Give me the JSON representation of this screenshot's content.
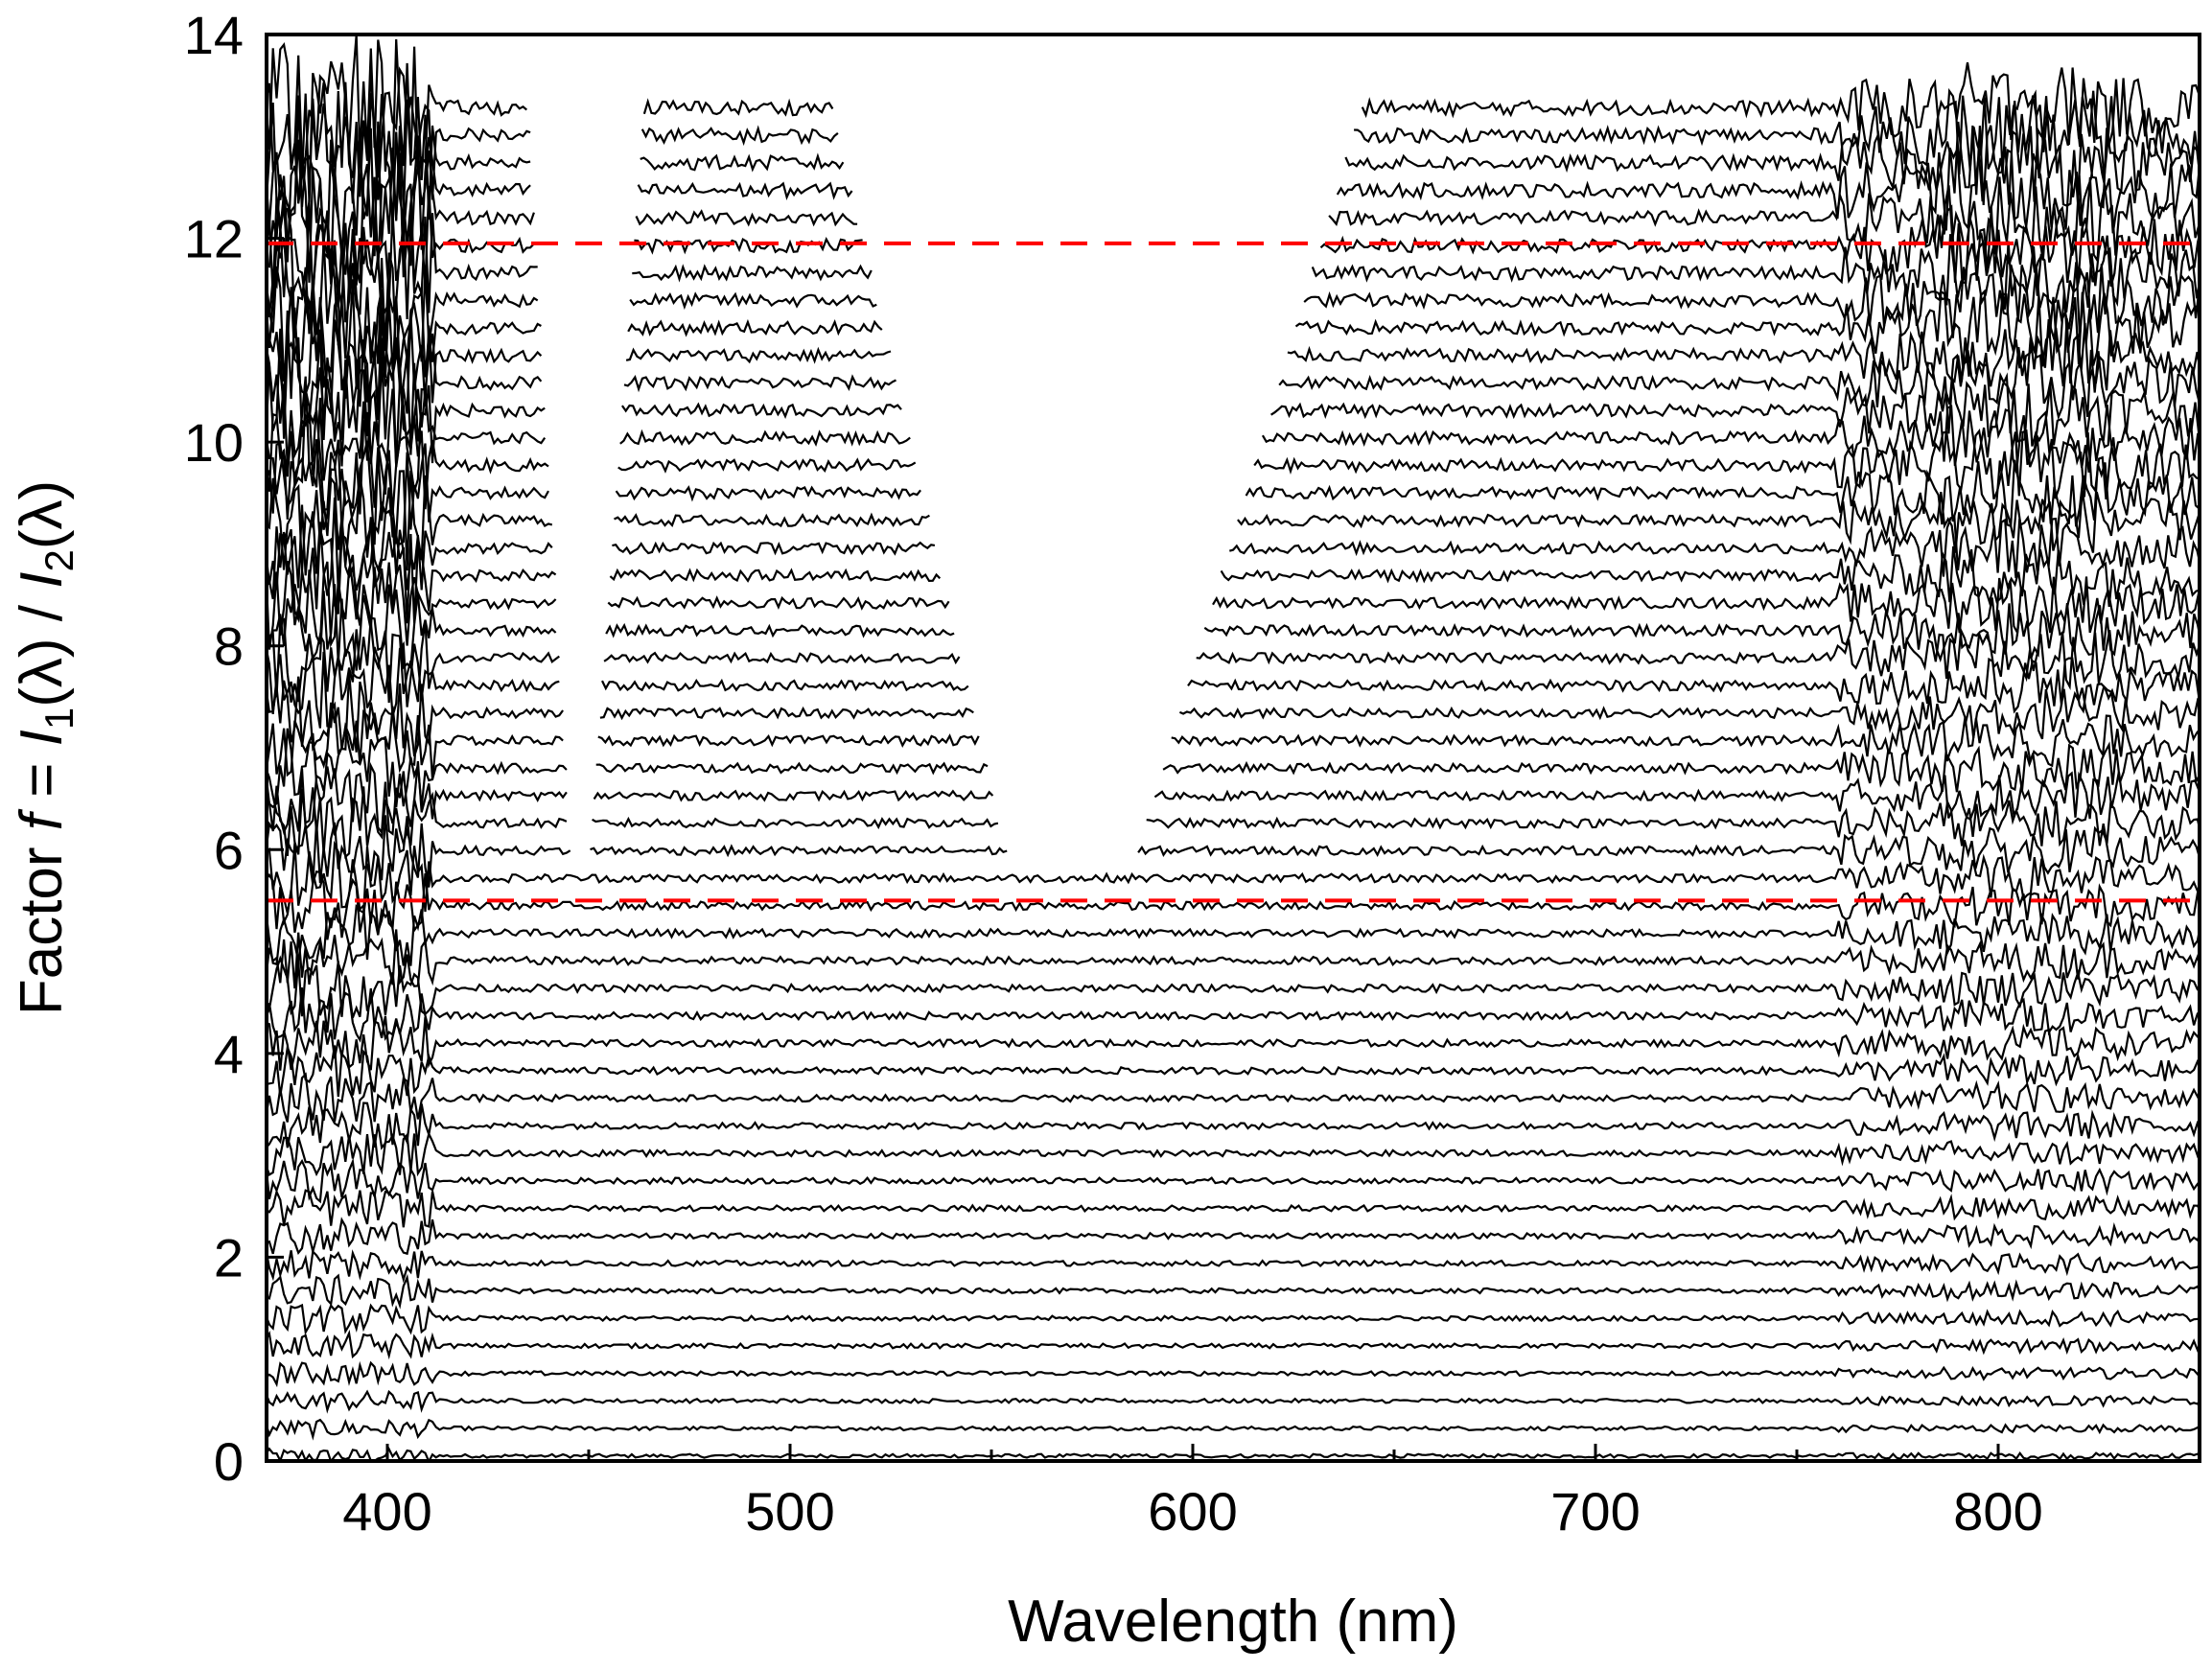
{
  "chart_data": {
    "type": "line",
    "title": "",
    "xlabel": "Wavelength (nm)",
    "ylabel": {
      "prefix": "Factor ",
      "f": "f",
      "eq": " = ",
      "I1": "I",
      "sub1": "1",
      "mid": "(λ) / ",
      "I2": "I",
      "sub2": "2",
      "end": "(λ)"
    },
    "xlim": [
      370,
      850
    ],
    "ylim": [
      0,
      14
    ],
    "x_ticks": [
      400,
      500,
      600,
      700,
      800
    ],
    "x_minor_ticks": [
      450,
      550,
      650,
      750
    ],
    "y_ticks": [
      0,
      2,
      4,
      6,
      8,
      10,
      12,
      14
    ],
    "grid": false,
    "series": {
      "description": "Stacked noisy spectra of f(λ); traces above f≈6 have a gap in the middle of the spectrum",
      "offset_step": 0.27,
      "count": 50,
      "color": "#000000",
      "gap_reference": [
        {
          "f": 5.8,
          "left_gap": [
            446,
            446
          ],
          "right_gap": [
            555,
            585
          ]
        },
        {
          "f": 13.4,
          "left_gap": [
            435,
            460
          ],
          "right_gap": [
            510,
            643
          ]
        }
      ]
    },
    "reference_lines": [
      {
        "y": 11.95,
        "color": "#ff0000",
        "style": "dashed"
      },
      {
        "y": 5.5,
        "color": "#ff0000",
        "style": "dashed"
      }
    ]
  }
}
